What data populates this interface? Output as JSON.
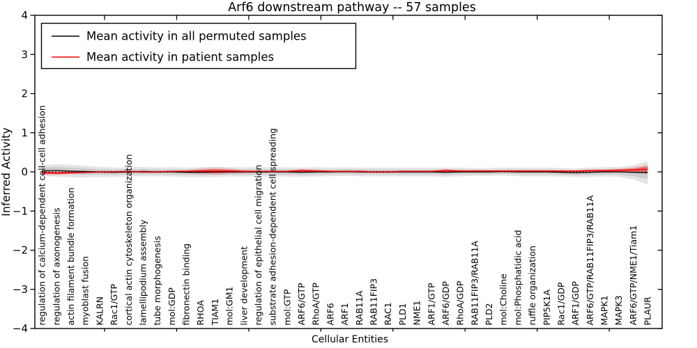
{
  "chart_data": {
    "type": "line",
    "title": "Arf6 downstream pathway -- 57 samples",
    "xlabel": "Cellular Entities",
    "ylabel": "Inferred Activity",
    "ylim": [
      -4,
      4
    ],
    "yticks": [
      4,
      3,
      2,
      1,
      0,
      -1,
      -2,
      -3,
      -4
    ],
    "ytick_labels": [
      "4",
      "3",
      "2",
      "1",
      "0",
      "−1",
      "−2",
      "−3",
      "−4"
    ],
    "grid": false,
    "legend_position": "upper left",
    "zero_reference_line_style": "dotted",
    "background_color": "#ffffff",
    "categories": [
      "regulation of calcium-dependent cell-cell adhesion",
      "regulation of axonogenesis",
      "actin filament bundle formation",
      "myoblast fusion",
      "KALRN",
      "Rac1/GTP",
      "cortical actin cytoskeleton organization",
      "lamellipodium assembly",
      "tube morphogenesis",
      "mol:GDP",
      "fibronectin binding",
      "RHOA",
      "TIAM1",
      "mol:GM1",
      "liver development",
      "regulation of epithelial cell migration",
      "substrate adhesion-dependent cell spreading",
      "mol:GTP",
      "ARF6/GTP",
      "RhoA/GTP",
      "ARF6",
      "ARF1",
      "RAB11A",
      "RAB11FIP3",
      "RAC1",
      "PLD1",
      "NME1",
      "ARF1/GTP",
      "ARF6/GDP",
      "RhoA/GDP",
      "RAB11FIP3/RAB11A",
      "PLD2",
      "mol:Choline",
      "mol:Phosphatidic acid",
      "ruffle organization",
      "PIP5K1A",
      "Rac1/GDP",
      "ARF1/GDP",
      "ARF6/GTP/RAB11FIP3/RAB11A",
      "MAPK1",
      "MAPK3",
      "ARF6/GTP/NME1/Tiam1",
      "PLAUR"
    ],
    "series": [
      {
        "name": "Mean activity in all permuted samples",
        "color": "#000000",
        "line_style": "solid",
        "values": [
          0.03,
          0.04,
          0.02,
          0.01,
          0,
          -0.01,
          0,
          0.01,
          0,
          0,
          -0.01,
          -0.01,
          0,
          0,
          0,
          0,
          0,
          0,
          -0.01,
          0,
          0,
          0.01,
          0,
          0,
          0,
          0,
          0,
          0,
          -0.01,
          0,
          0,
          0,
          0.01,
          0,
          0,
          0,
          -0.01,
          -0.02,
          -0.01,
          0,
          0,
          -0.01,
          -0.02
        ],
        "band_halfwidth": [
          0.14,
          0.16,
          0.16,
          0.15,
          0.13,
          0.12,
          0.12,
          0.12,
          0.11,
          0.12,
          0.12,
          0.13,
          0.13,
          0.12,
          0.12,
          0.12,
          0.12,
          0.12,
          0.12,
          0.12,
          0.11,
          0.11,
          0.11,
          0.11,
          0.11,
          0.11,
          0.11,
          0.11,
          0.12,
          0.11,
          0.1,
          0.1,
          0.1,
          0.11,
          0.11,
          0.11,
          0.11,
          0.11,
          0.12,
          0.12,
          0.13,
          0.18,
          0.3
        ]
      },
      {
        "name": "Mean activity in patient samples",
        "color": "#ff0000",
        "line_style": "solid",
        "values": [
          -0.02,
          -0.03,
          -0.02,
          -0.01,
          0,
          0,
          0.01,
          0,
          0,
          0.01,
          0.01,
          0.02,
          0.02,
          0.02,
          0.01,
          0.01,
          0.01,
          0.01,
          0.03,
          0.02,
          0.01,
          0.01,
          0.01,
          0,
          0,
          0.01,
          0.01,
          0.01,
          0.03,
          0.02,
          0.02,
          0.02,
          0.02,
          0.02,
          0.02,
          0.02,
          0.02,
          0.02,
          0.03,
          0.03,
          0.04,
          0.05,
          0.07
        ],
        "band_halfwidth": [
          0.06,
          0.05,
          0.04,
          0.03,
          0.03,
          0.03,
          0.03,
          0.03,
          0.03,
          0.03,
          0.04,
          0.07,
          0.1,
          0.07,
          0.04,
          0.03,
          0.03,
          0.03,
          0.05,
          0.04,
          0.03,
          0.03,
          0.03,
          0.03,
          0.03,
          0.03,
          0.03,
          0.03,
          0.05,
          0.03,
          0.03,
          0.03,
          0.03,
          0.03,
          0.03,
          0.03,
          0.03,
          0.03,
          0.04,
          0.04,
          0.05,
          0.07,
          0.12
        ]
      }
    ]
  }
}
